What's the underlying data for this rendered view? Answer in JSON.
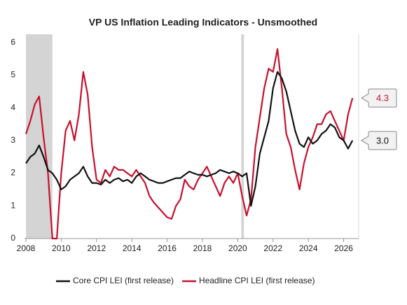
{
  "chart_data": {
    "type": "line",
    "title": "VP US Inflation Leading Indicators - Unsmoothed",
    "x": [
      2008,
      2008.25,
      2008.5,
      2008.75,
      2009,
      2009.25,
      2009.5,
      2009.75,
      2010,
      2010.25,
      2010.5,
      2010.75,
      2011,
      2011.25,
      2011.5,
      2011.75,
      2012,
      2012.25,
      2012.5,
      2012.75,
      2013,
      2013.25,
      2013.5,
      2013.75,
      2014,
      2014.25,
      2014.5,
      2014.75,
      2015,
      2015.25,
      2015.5,
      2015.75,
      2016,
      2016.25,
      2016.5,
      2016.75,
      2017,
      2017.25,
      2017.5,
      2017.75,
      2018,
      2018.25,
      2018.5,
      2018.75,
      2019,
      2019.25,
      2019.5,
      2019.75,
      2020,
      2020.25,
      2020.5,
      2020.75,
      2021,
      2021.25,
      2021.5,
      2021.75,
      2022,
      2022.25,
      2022.5,
      2022.75,
      2023,
      2023.25,
      2023.5,
      2023.75,
      2024,
      2024.25,
      2024.5,
      2024.75,
      2025,
      2025.25,
      2025.5,
      2025.75,
      2026,
      2026.25,
      2026.5
    ],
    "series": [
      {
        "name": "Core CPI LEI (first release)",
        "color": "#111111",
        "values": [
          2.3,
          2.5,
          2.6,
          2.85,
          2.5,
          2.1,
          2.0,
          1.8,
          1.5,
          1.6,
          1.8,
          1.9,
          2.0,
          2.2,
          1.9,
          1.7,
          1.7,
          1.65,
          1.8,
          1.7,
          1.8,
          1.85,
          1.75,
          1.8,
          1.7,
          1.9,
          2.0,
          1.9,
          1.8,
          1.75,
          1.7,
          1.7,
          1.75,
          1.8,
          1.85,
          1.85,
          1.95,
          2.05,
          2.0,
          1.95,
          1.95,
          1.9,
          1.95,
          2.0,
          2.1,
          2.05,
          2.0,
          2.05,
          2.0,
          1.9,
          2.0,
          1.0,
          1.6,
          2.6,
          3.1,
          3.6,
          4.6,
          5.1,
          4.9,
          4.5,
          3.9,
          3.3,
          2.9,
          2.8,
          3.1,
          2.9,
          3.0,
          3.2,
          3.3,
          3.5,
          3.4,
          3.1,
          3.0,
          2.75,
          3.0
        ],
        "callout": {
          "value": 3.0,
          "label": "3.0"
        }
      },
      {
        "name": "Headline CPI LEI (first release)",
        "color": "#c8102e",
        "values": [
          3.2,
          3.6,
          4.1,
          4.35,
          3.1,
          2.0,
          0.0,
          0.0,
          2.0,
          3.3,
          3.6,
          3.0,
          3.8,
          5.1,
          4.4,
          2.8,
          1.8,
          1.7,
          2.1,
          1.9,
          2.2,
          2.1,
          2.1,
          2.0,
          1.9,
          2.1,
          1.9,
          1.7,
          1.3,
          1.1,
          0.95,
          0.8,
          0.65,
          0.6,
          1.0,
          1.2,
          1.8,
          1.6,
          1.5,
          1.8,
          2.0,
          2.2,
          1.9,
          1.6,
          1.3,
          1.7,
          1.9,
          1.7,
          2.0,
          1.3,
          0.7,
          1.2,
          2.8,
          3.7,
          4.6,
          5.2,
          5.1,
          5.8,
          4.6,
          3.2,
          2.8,
          2.1,
          1.5,
          2.3,
          2.8,
          3.1,
          3.5,
          3.5,
          3.8,
          3.9,
          3.6,
          3.3,
          3.0,
          3.8,
          4.3
        ],
        "callout": 4.3
      }
    ],
    "shaded_ranges": [
      [
        2008,
        2009.5
      ],
      [
        2020.2,
        2020.35
      ]
    ],
    "xlim": [
      2008,
      2026.85
    ],
    "xticks": [
      2008,
      2010,
      2012,
      2014,
      2016,
      2018,
      2020,
      2022,
      2024,
      2026
    ],
    "ylim": [
      0,
      6.25
    ],
    "yticks": [
      0,
      1,
      2,
      3,
      4,
      5,
      6
    ],
    "grid": false,
    "legend": "bottom"
  }
}
